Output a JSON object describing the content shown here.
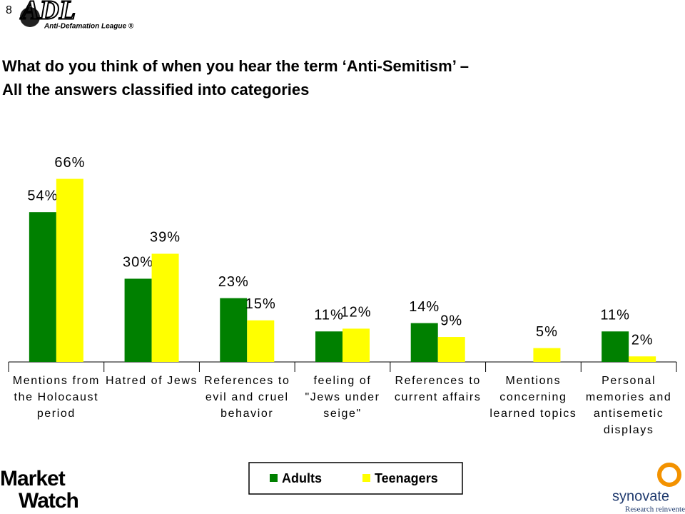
{
  "page_number": "8",
  "logos": {
    "adl": "ADL",
    "adl_tagline": "Anti-Defamation League ®",
    "marketwatch_1": "Market",
    "marketwatch_2": "Watch",
    "synovate": "synovate",
    "synovate_tagline": "Research reinvented"
  },
  "chart_data": {
    "type": "bar",
    "title": "What do you think of when you hear the term ‘Anti-Semitism’ –\nAll the answers classified into categories",
    "categories": [
      "Mentions from the Holocaust period",
      "Hatred of Jews",
      "References to evil and cruel behavior",
      "feeling of \"Jews under seige\"",
      "References to current affairs",
      "Mentions concerning learned topics",
      "Personal memories and antisemetic displays"
    ],
    "series": [
      {
        "name": "Adults",
        "color": "#008000",
        "values": [
          54,
          30,
          23,
          11,
          14,
          null,
          11
        ],
        "value_labels": [
          "54%",
          "30%",
          "23%",
          "11%",
          "14%",
          null,
          "11%"
        ]
      },
      {
        "name": "Teenagers",
        "color": "#ffff00",
        "values": [
          66,
          39,
          15,
          12,
          9,
          5,
          2
        ],
        "value_labels": [
          "66%",
          "39%",
          "15%",
          "12%",
          "9%",
          "5%",
          "2%"
        ]
      }
    ],
    "ylim": [
      0,
      70
    ],
    "legend": "bottom"
  }
}
